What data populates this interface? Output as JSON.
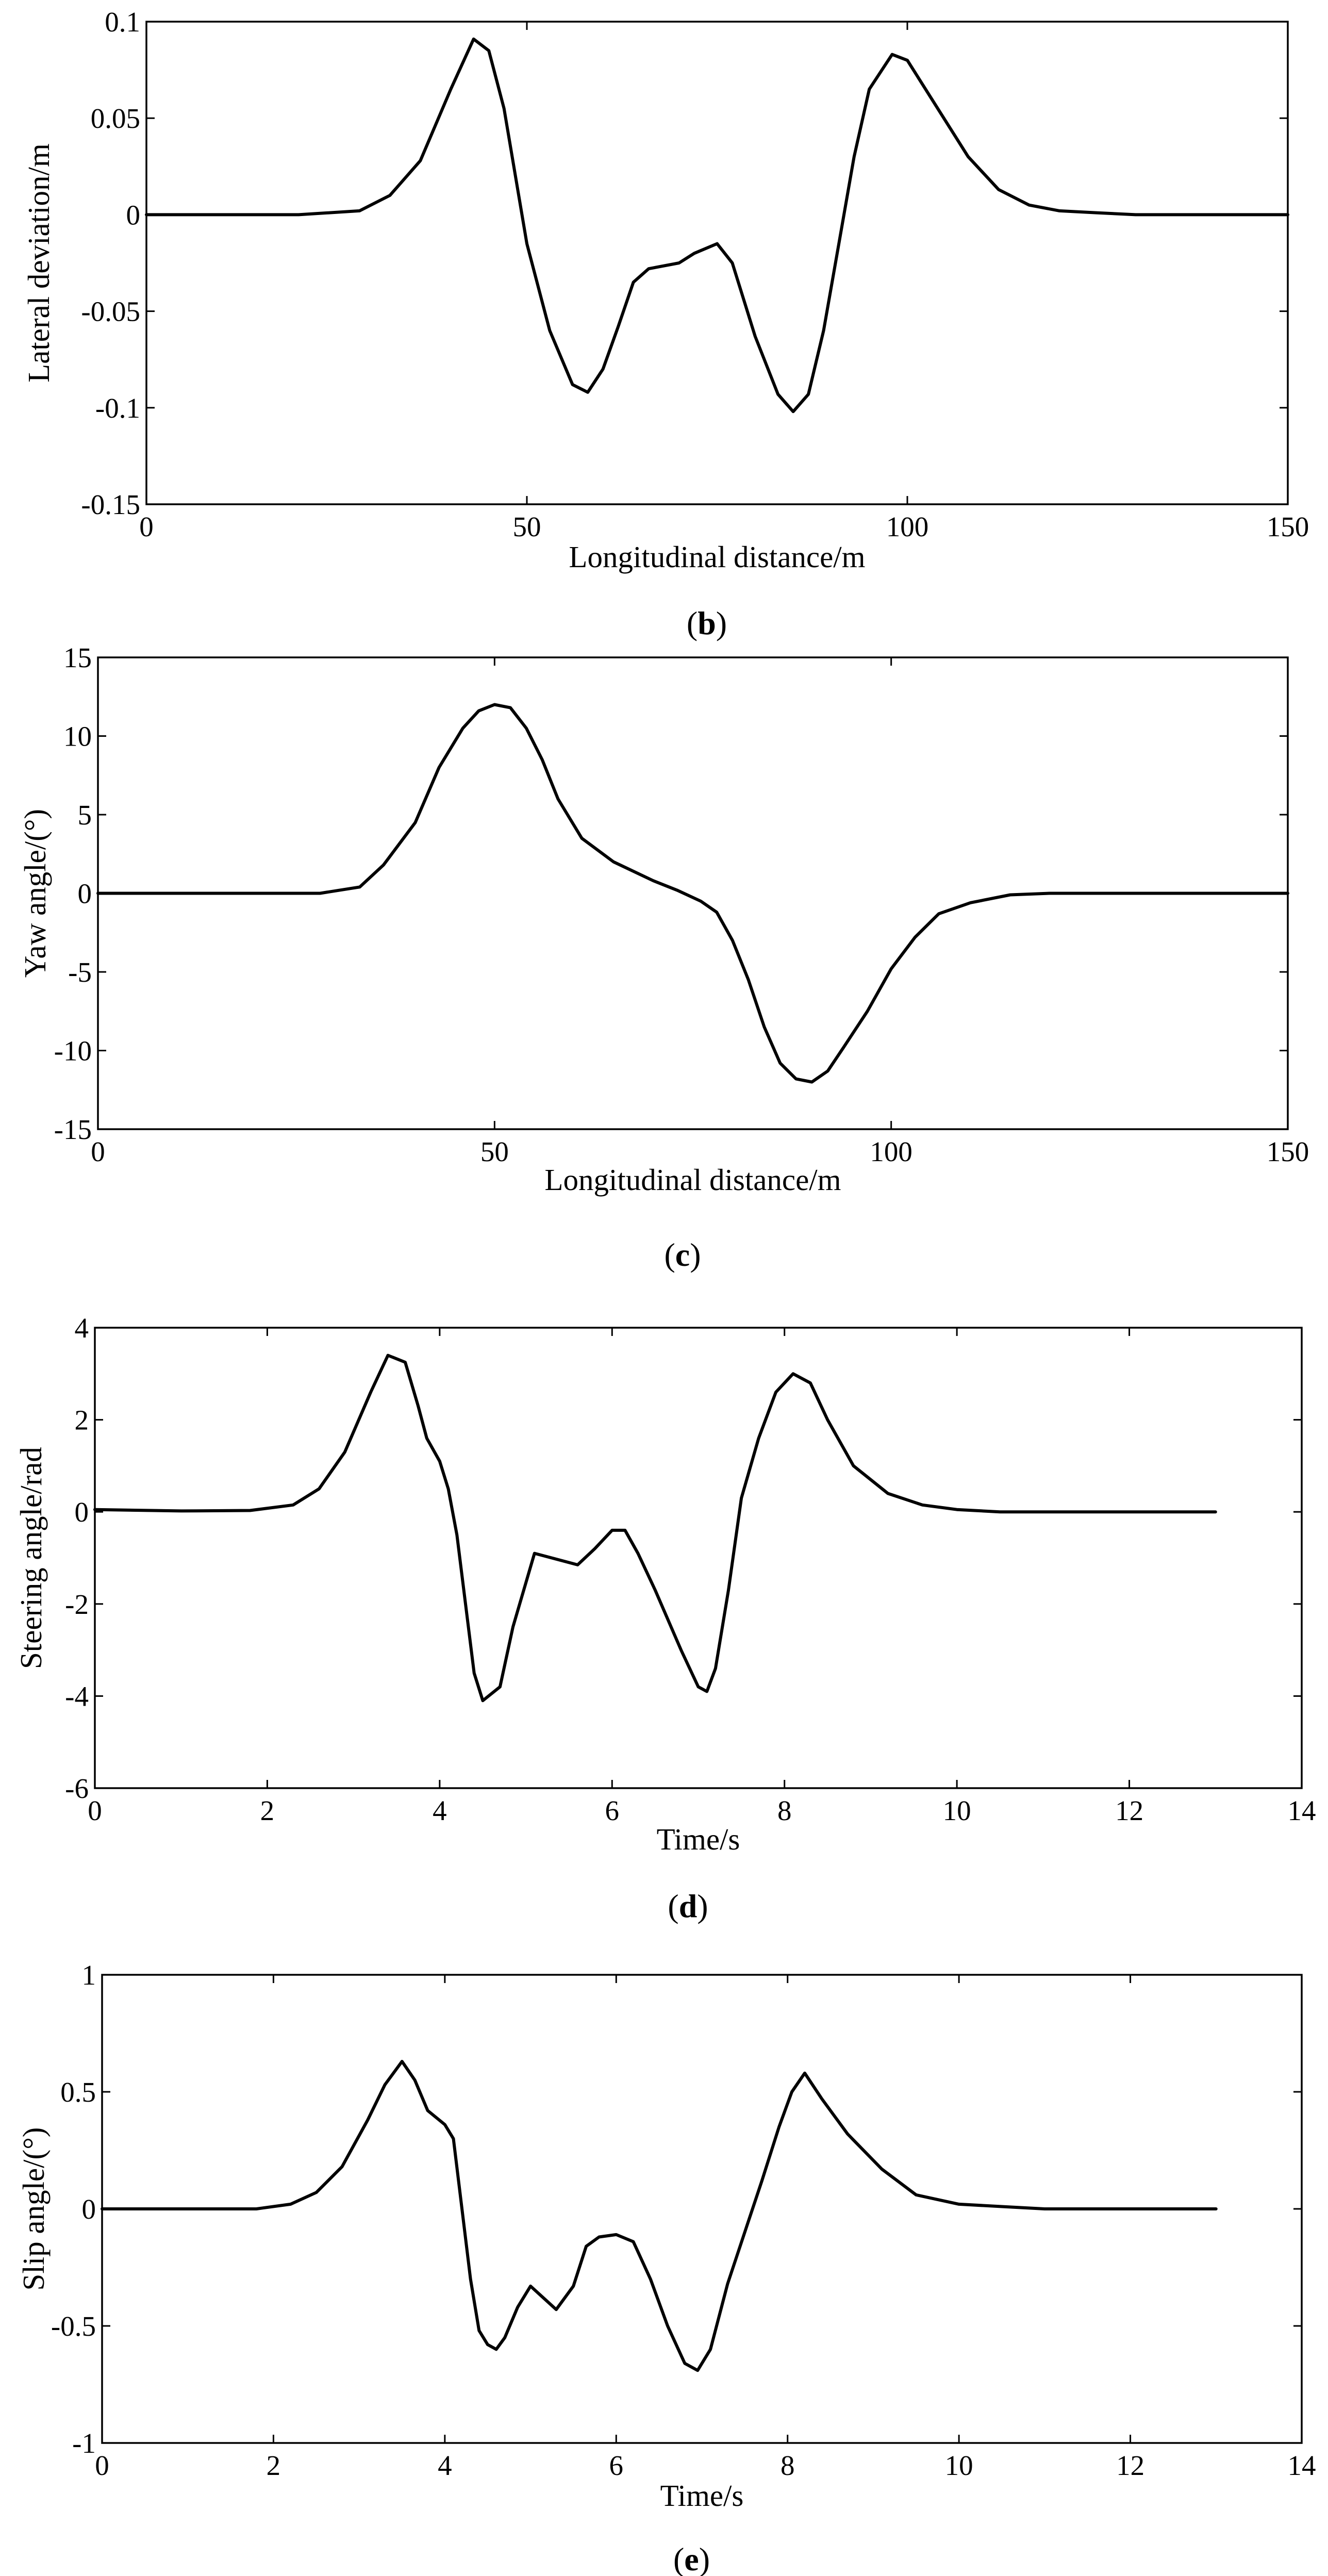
{
  "chart_data": [
    {
      "type": "line",
      "panel_label": "b",
      "xlabel": "Longitudinal distance/m",
      "ylabel": "Lateral deviation/m",
      "xlim": [
        0,
        150
      ],
      "ylim": [
        -0.15,
        0.1
      ],
      "xticks": [
        0,
        50,
        100,
        150
      ],
      "xtick_labels": [
        "0",
        "50",
        "100",
        "150"
      ],
      "yticks": [
        -0.15,
        -0.1,
        -0.05,
        0,
        0.05,
        0.1
      ],
      "ytick_labels": [
        "-0.15",
        "-0.1",
        "-0.05",
        "0",
        "0.05",
        "0.1"
      ],
      "grid": false,
      "series": [
        {
          "name": "Lateral deviation",
          "x": [
            0,
            20,
            28,
            32,
            36,
            40,
            43,
            45,
            47,
            50,
            53,
            56,
            58,
            60,
            62,
            64,
            66,
            70,
            72,
            75,
            77,
            80,
            83,
            85,
            87,
            89,
            91,
            93,
            95,
            98,
            100,
            104,
            108,
            112,
            116,
            120,
            125,
            130,
            140,
            150
          ],
          "y": [
            0,
            0,
            0.002,
            0.01,
            0.028,
            0.065,
            0.091,
            0.085,
            0.055,
            -0.015,
            -0.06,
            -0.088,
            -0.092,
            -0.08,
            -0.058,
            -0.035,
            -0.028,
            -0.025,
            -0.02,
            -0.015,
            -0.025,
            -0.063,
            -0.093,
            -0.102,
            -0.093,
            -0.06,
            -0.015,
            0.03,
            0.065,
            0.083,
            0.08,
            0.055,
            0.03,
            0.013,
            0.005,
            0.002,
            0.001,
            0,
            0,
            0
          ]
        }
      ]
    },
    {
      "type": "line",
      "panel_label": "c",
      "xlabel": "Longitudinal distance/m",
      "ylabel": "Yaw angle/(°)",
      "xlim": [
        0,
        150
      ],
      "ylim": [
        -15,
        15
      ],
      "xticks": [
        0,
        50,
        100,
        150
      ],
      "xtick_labels": [
        "0",
        "50",
        "100",
        "150"
      ],
      "yticks": [
        -15,
        -10,
        -5,
        0,
        5,
        10,
        15
      ],
      "ytick_labels": [
        "-15",
        "-10",
        "-5",
        "0",
        "5",
        "10",
        "15"
      ],
      "grid": false,
      "series": [
        {
          "name": "Yaw angle",
          "x": [
            0,
            20,
            28,
            33,
            36,
            40,
            43,
            46,
            48,
            50,
            52,
            54,
            56,
            58,
            61,
            65,
            70,
            73,
            76,
            78,
            80,
            82,
            84,
            86,
            88,
            90,
            92,
            94,
            97,
            100,
            103,
            106,
            110,
            115,
            120,
            130,
            150
          ],
          "y": [
            0,
            0,
            0,
            0.4,
            1.8,
            4.5,
            8,
            10.5,
            11.6,
            12,
            11.8,
            10.5,
            8.5,
            6,
            3.5,
            2,
            0.8,
            0.2,
            -0.5,
            -1.2,
            -3,
            -5.5,
            -8.5,
            -10.8,
            -11.8,
            -12,
            -11.3,
            -9.8,
            -7.5,
            -4.8,
            -2.8,
            -1.3,
            -0.6,
            -0.1,
            0,
            0,
            0
          ]
        }
      ]
    },
    {
      "type": "line",
      "panel_label": "d",
      "xlabel": "Time/s",
      "ylabel": "Steering angle/rad",
      "xlim": [
        0,
        14
      ],
      "ylim": [
        -6,
        4
      ],
      "xticks": [
        0,
        2,
        4,
        6,
        8,
        10,
        12,
        14
      ],
      "xtick_labels": [
        "0",
        "2",
        "4",
        "6",
        "8",
        "10",
        "12",
        "14"
      ],
      "yticks": [
        -6,
        -4,
        -2,
        0,
        2,
        4
      ],
      "ytick_labels": [
        "-6",
        "-4",
        "-2",
        "0",
        "2",
        "4"
      ],
      "grid": false,
      "series": [
        {
          "name": "Steering angle",
          "x": [
            0,
            1,
            1.8,
            2.3,
            2.6,
            2.9,
            3.2,
            3.4,
            3.6,
            3.75,
            3.85,
            4,
            4.1,
            4.2,
            4.3,
            4.4,
            4.5,
            4.7,
            4.85,
            5.1,
            5.3,
            5.6,
            5.8,
            6,
            6.15,
            6.3,
            6.5,
            6.8,
            7,
            7.1,
            7.2,
            7.35,
            7.5,
            7.7,
            7.9,
            8.1,
            8.3,
            8.5,
            8.8,
            9.2,
            9.6,
            10,
            10.5,
            11,
            12,
            13
          ],
          "y": [
            0.05,
            0.02,
            0.03,
            0.15,
            0.5,
            1.3,
            2.6,
            3.4,
            3.25,
            2.3,
            1.6,
            1.1,
            0.5,
            -0.5,
            -2,
            -3.5,
            -4.1,
            -3.8,
            -2.5,
            -0.9,
            -1.0,
            -1.15,
            -0.8,
            -0.4,
            -0.4,
            -0.9,
            -1.7,
            -3.0,
            -3.8,
            -3.9,
            -3.4,
            -1.7,
            0.3,
            1.6,
            2.6,
            3.0,
            2.8,
            2.0,
            1.0,
            0.4,
            0.15,
            0.05,
            0,
            0,
            0,
            0
          ]
        }
      ]
    },
    {
      "type": "line",
      "panel_label": "e",
      "xlabel": "Time/s",
      "ylabel": "Slip angle/(°)",
      "xlim": [
        0,
        14
      ],
      "ylim": [
        -1,
        1
      ],
      "xticks": [
        0,
        2,
        4,
        6,
        8,
        10,
        12,
        14
      ],
      "xtick_labels": [
        "0",
        "2",
        "4",
        "6",
        "8",
        "10",
        "12",
        "14"
      ],
      "yticks": [
        -1,
        -0.5,
        0,
        0.5,
        1
      ],
      "ytick_labels": [
        "-1",
        "-0.5",
        "0",
        "0.5",
        "1"
      ],
      "grid": false,
      "series": [
        {
          "name": "Slip angle",
          "x": [
            0,
            1,
            1.8,
            2.2,
            2.5,
            2.8,
            3.1,
            3.3,
            3.5,
            3.65,
            3.8,
            4,
            4.1,
            4.2,
            4.3,
            4.4,
            4.5,
            4.6,
            4.7,
            4.85,
            5,
            5.15,
            5.3,
            5.5,
            5.65,
            5.8,
            6,
            6.2,
            6.4,
            6.6,
            6.8,
            6.95,
            7.1,
            7.3,
            7.5,
            7.7,
            7.9,
            8.05,
            8.2,
            8.4,
            8.7,
            9.1,
            9.5,
            10,
            10.5,
            11,
            12,
            13
          ],
          "y": [
            0,
            0,
            0,
            0.02,
            0.07,
            0.18,
            0.38,
            0.53,
            0.63,
            0.55,
            0.42,
            0.36,
            0.3,
            0.0,
            -0.3,
            -0.52,
            -0.58,
            -0.6,
            -0.55,
            -0.42,
            -0.33,
            -0.38,
            -0.43,
            -0.33,
            -0.16,
            -0.12,
            -0.11,
            -0.14,
            -0.3,
            -0.5,
            -0.66,
            -0.69,
            -0.6,
            -0.32,
            -0.1,
            0.12,
            0.35,
            0.5,
            0.58,
            0.47,
            0.32,
            0.17,
            0.06,
            0.02,
            0.01,
            0,
            0,
            0
          ]
        }
      ]
    }
  ]
}
